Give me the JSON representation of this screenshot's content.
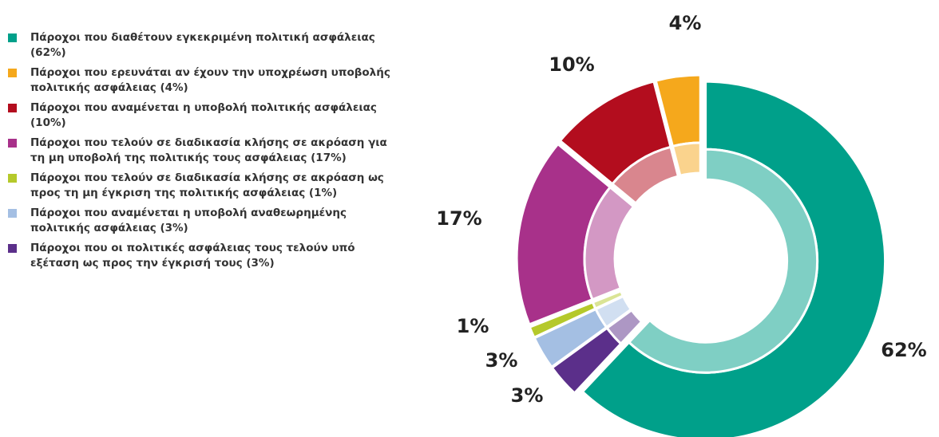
{
  "chart_data": {
    "type": "donut",
    "categories": [
      "Πάροχοι που διαθέτουν εγκεκριμένη πολιτική ασφάλειας (62%)",
      "Πάροχοι που ερευνάται αν έχουν την υποχρέωση υποβολής πολιτικής ασφάλειας (4%)",
      "Πάροχοι που αναμένεται η υποβολή πολιτικής ασφάλειας (10%)",
      "Πάροχοι που τελούν σε διαδικασία κλήσης σε ακρόαση για τη μη υποβολή της πολιτικής τους ασφάλειας (17%)",
      "Πάροχοι που τελούν σε διαδικασία κλήσης σε ακρόαση ως προς τη μη έγκριση της πολιτικής ασφάλειας (1%)",
      "Πάροχοι που αναμένεται η υποβολή αναθεωρημένης πολιτικής ασφάλειας (3%)",
      "Πάροχοι που οι πολιτικές ασφάλειας τους τελούν υπό εξέταση ως προς την έγκρισή τους (3%)"
    ],
    "values": [
      62,
      4,
      10,
      17,
      1,
      3,
      3
    ],
    "value_labels": [
      "62%",
      "4%",
      "10%",
      "17%",
      "1%",
      "3%",
      "3%"
    ],
    "colors": [
      "#00a08a",
      "#f5a81c",
      "#b30d1e",
      "#a8318a",
      "#b5c92b",
      "#a4bfe3",
      "#5b2f8a"
    ],
    "legend": "left"
  }
}
